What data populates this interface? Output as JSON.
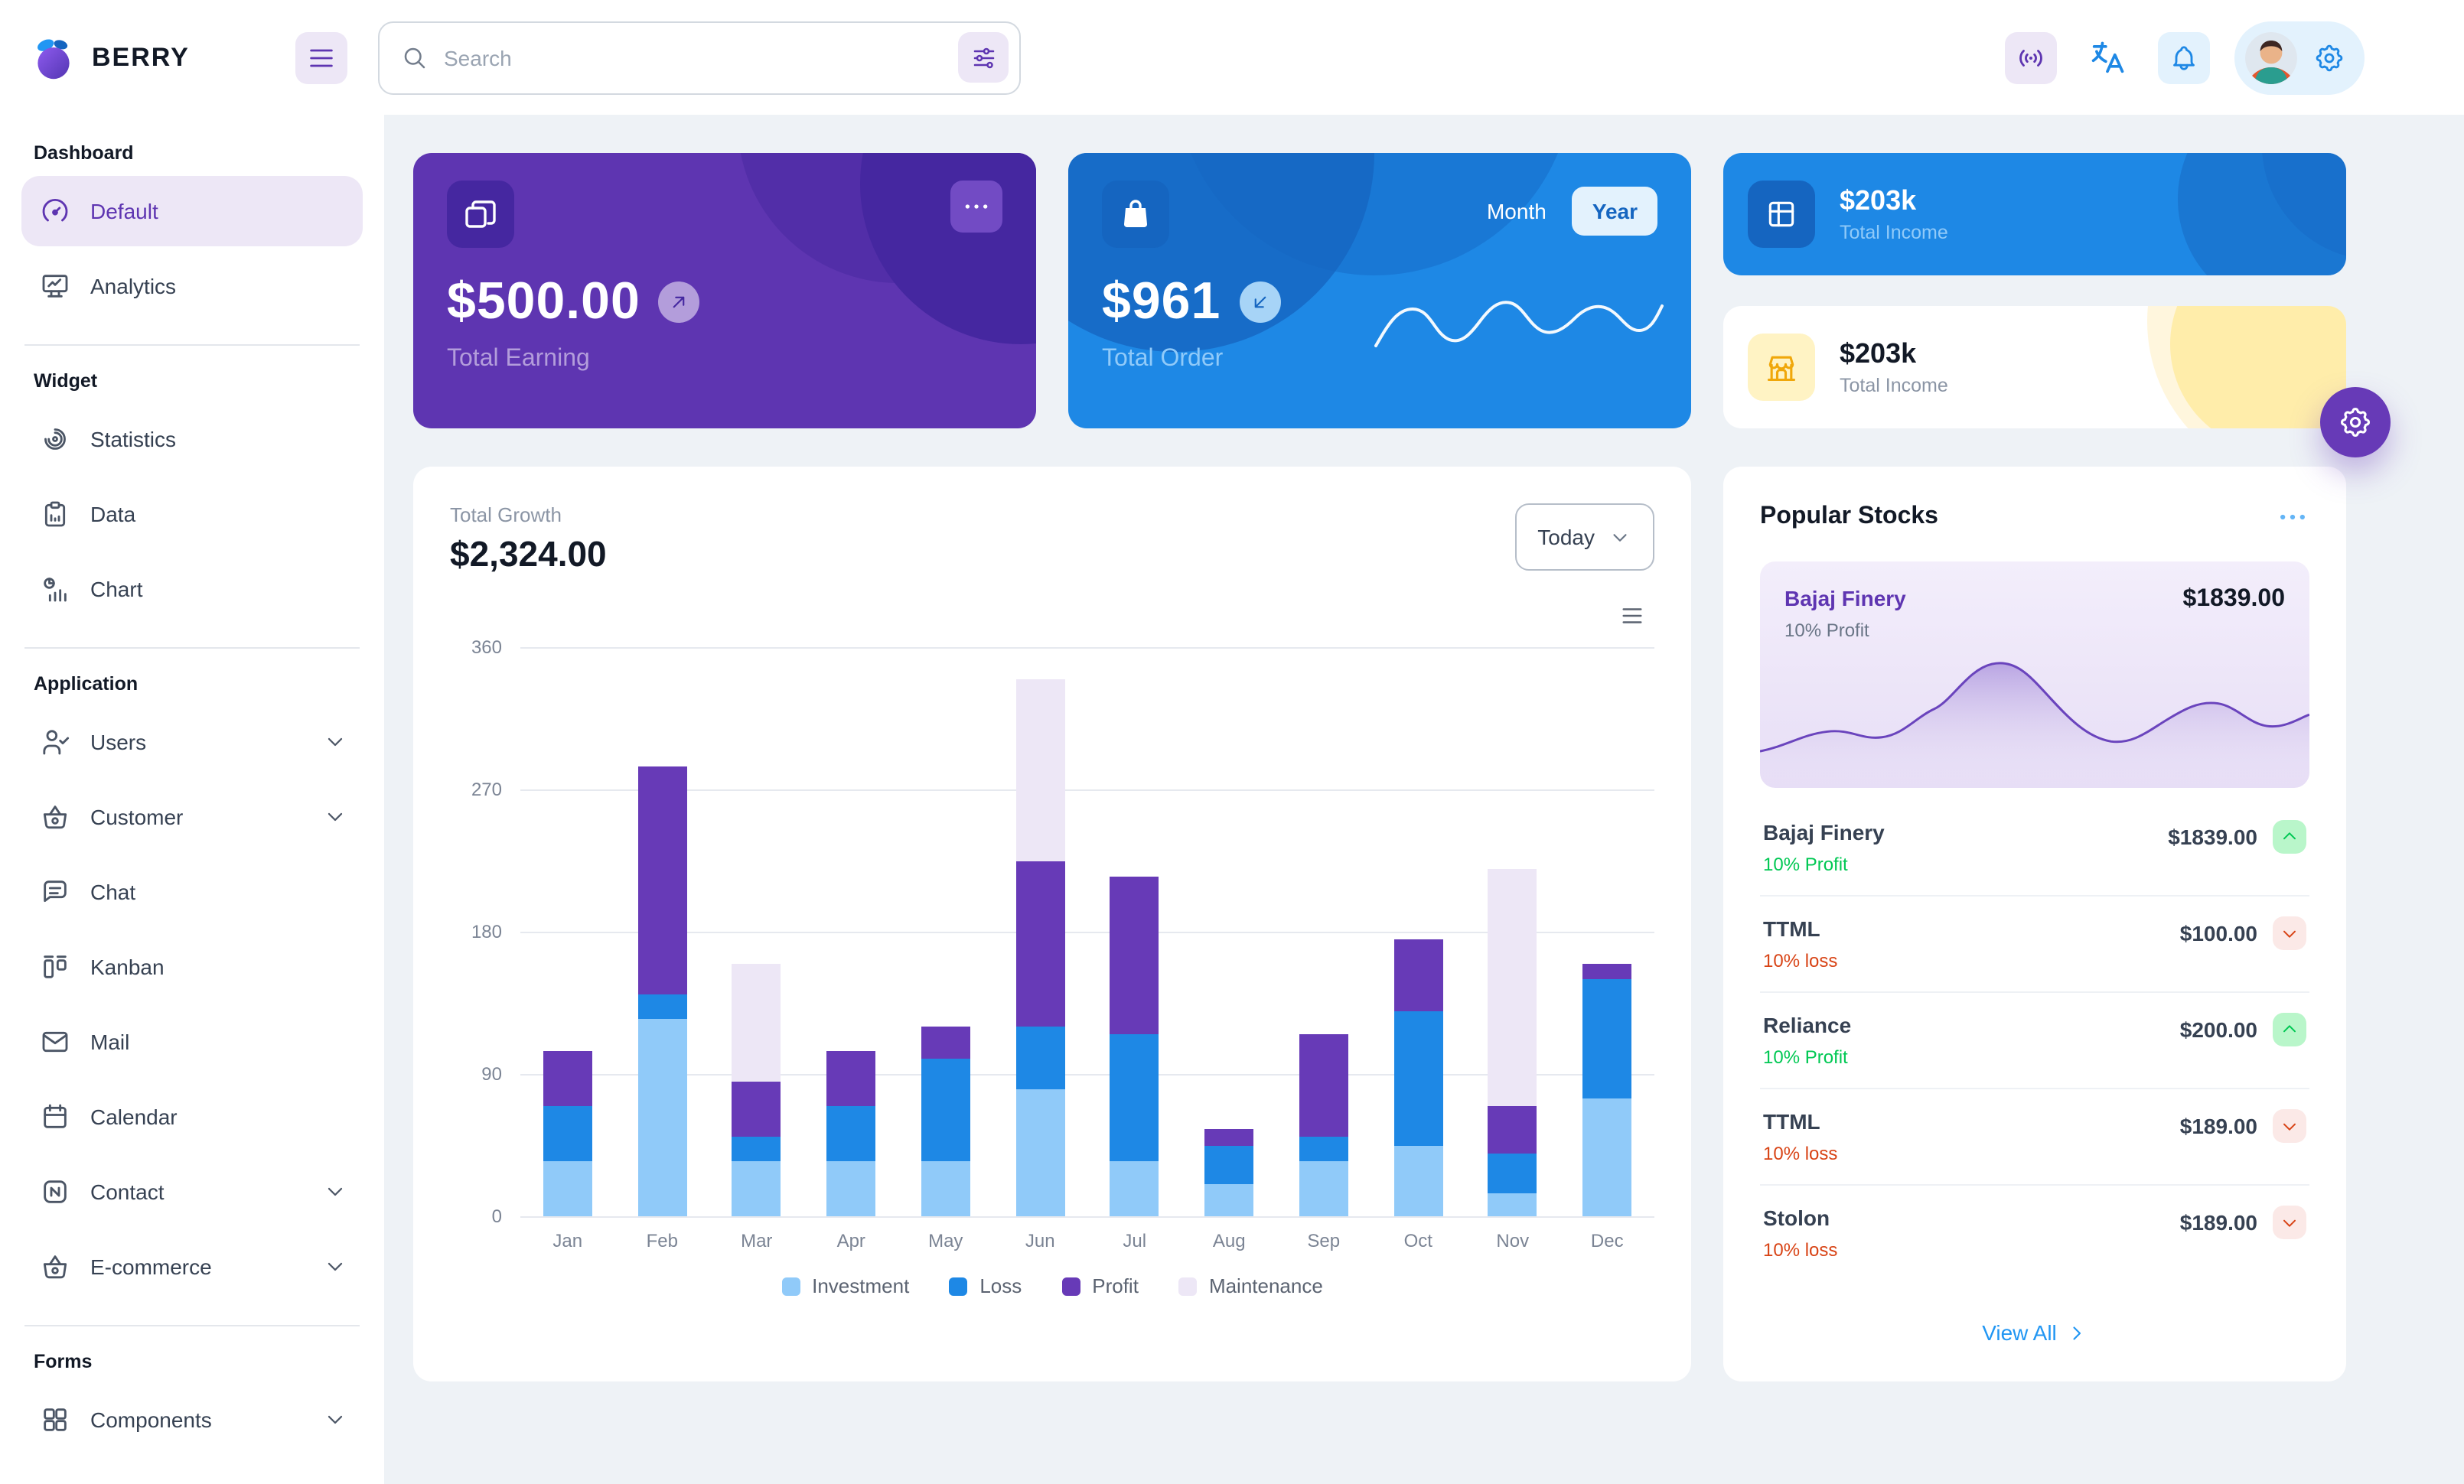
{
  "brand": {
    "name": "BERRY"
  },
  "palette": {
    "primary": "#2196f3",
    "primary_dark": "#1e88e5",
    "secondary": "#673ab7",
    "secondary_dark": "#5e35b1",
    "success": "#00c853",
    "loss_orange": "#d84315",
    "warning": "#ffc107",
    "background": "#eef2f6"
  },
  "header": {
    "search_placeholder": "Search"
  },
  "sidebar": {
    "sections": [
      {
        "title": "Dashboard",
        "items": [
          {
            "label": "Default"
          },
          {
            "label": "Analytics"
          }
        ]
      },
      {
        "title": "Widget",
        "items": [
          {
            "label": "Statistics"
          },
          {
            "label": "Data"
          },
          {
            "label": "Chart"
          }
        ]
      },
      {
        "title": "Application",
        "items": [
          {
            "label": "Users"
          },
          {
            "label": "Customer"
          },
          {
            "label": "Chat"
          },
          {
            "label": "Kanban"
          },
          {
            "label": "Mail"
          },
          {
            "label": "Calendar"
          },
          {
            "label": "Contact"
          },
          {
            "label": "E-commerce"
          }
        ]
      },
      {
        "title": "Forms",
        "items": [
          {
            "label": "Components"
          }
        ]
      }
    ]
  },
  "cards": {
    "total_earning": {
      "amount": "$500.00",
      "label": "Total Earning"
    },
    "total_order": {
      "amount": "$961",
      "label": "Total Order",
      "toggle_month": "Month",
      "toggle_year": "Year",
      "selected": "Year"
    },
    "total_income_blue": {
      "amount": "$203k",
      "label": "Total Income"
    },
    "total_income_light": {
      "amount": "$203k",
      "label": "Total Income"
    }
  },
  "growth": {
    "title": "Total Growth",
    "amount": "$2,324.00",
    "period": "Today"
  },
  "chart_data": {
    "type": "bar",
    "stacked": true,
    "title": "Total Growth",
    "categories": [
      "Jan",
      "Feb",
      "Mar",
      "Apr",
      "May",
      "Jun",
      "Jul",
      "Aug",
      "Sep",
      "Oct",
      "Nov",
      "Dec"
    ],
    "series": [
      {
        "name": "Investment",
        "color": "#90caf9",
        "values": [
          35,
          125,
          35,
          35,
          35,
          80,
          35,
          20,
          35,
          45,
          15,
          75
        ]
      },
      {
        "name": "Loss",
        "color": "#1e88e5",
        "values": [
          35,
          15,
          15,
          35,
          65,
          40,
          80,
          25,
          15,
          85,
          25,
          75
        ]
      },
      {
        "name": "Profit",
        "color": "#673ab7",
        "values": [
          35,
          145,
          35,
          35,
          20,
          105,
          100,
          10,
          65,
          45,
          30,
          10
        ]
      },
      {
        "name": "Maintenance",
        "color": "#ede7f6",
        "values": [
          0,
          0,
          75,
          0,
          0,
          115,
          0,
          0,
          0,
          0,
          150,
          0
        ]
      }
    ],
    "xlabel": "",
    "ylabel": "",
    "ylim": [
      0,
      360
    ],
    "yticks": [
      0,
      90,
      180,
      270,
      360
    ],
    "grid": true,
    "legend_position": "bottom"
  },
  "stocks": {
    "title": "Popular Stocks",
    "featured": {
      "name": "Bajaj Finery",
      "sub": "10% Profit",
      "price": "$1839.00"
    },
    "items": [
      {
        "name": "Bajaj Finery",
        "sub": "10% Profit",
        "price": "$1839.00",
        "dir": "up"
      },
      {
        "name": "TTML",
        "sub": "10% loss",
        "price": "$100.00",
        "dir": "down"
      },
      {
        "name": "Reliance",
        "sub": "10% Profit",
        "price": "$200.00",
        "dir": "up"
      },
      {
        "name": "TTML",
        "sub": "10% loss",
        "price": "$189.00",
        "dir": "down"
      },
      {
        "name": "Stolon",
        "sub": "10% loss",
        "price": "$189.00",
        "dir": "down"
      }
    ],
    "view_all": "View All"
  }
}
